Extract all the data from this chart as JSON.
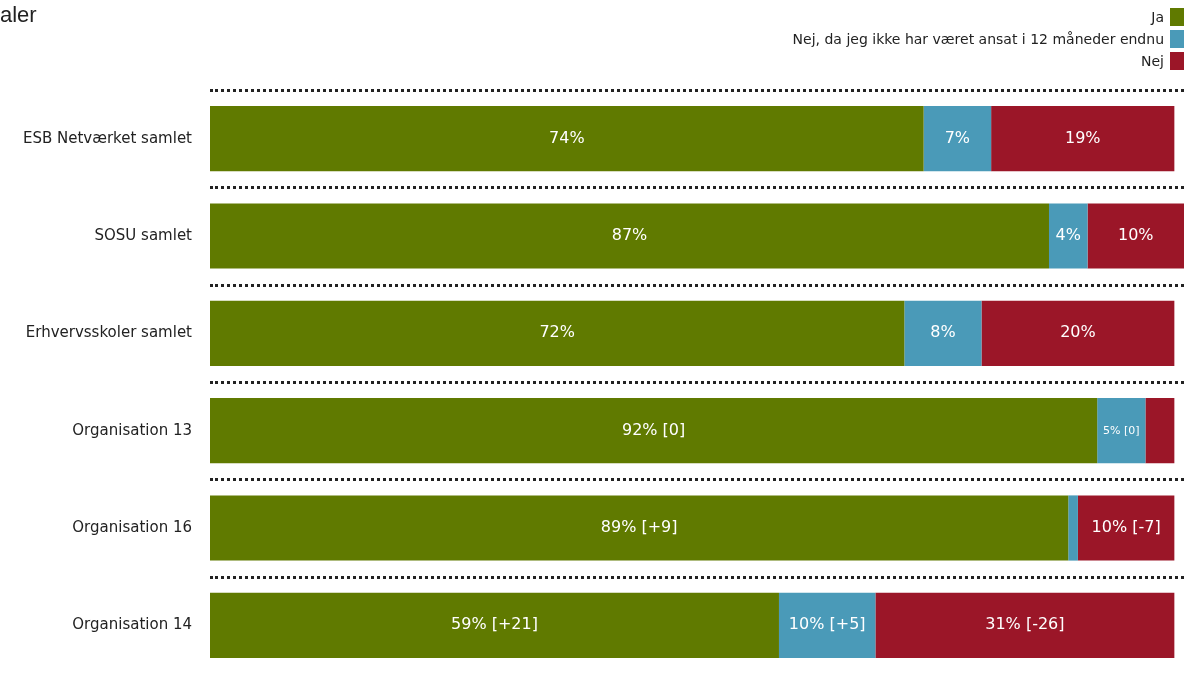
{
  "chart_data": {
    "type": "bar",
    "orientation": "horizontal",
    "stacked": true,
    "title": "aler",
    "legend": "top right",
    "categories": [
      "ESB Netværket samlet",
      "SOSU samlet",
      "Erhvervsskoler samlet",
      "Organisation 13",
      "Organisation 16",
      "Organisation 14"
    ],
    "series": [
      {
        "name": "Ja",
        "color": "#607a00",
        "values": [
          74,
          87,
          72,
          92,
          89,
          59
        ],
        "value_labels": [
          "74%",
          "87%",
          "72%",
          "92% [0]",
          "89% [+9]",
          "59% [+21]"
        ]
      },
      {
        "name": "Nej, da jeg ikke har været ansat i 12 måneder endnu",
        "color": "#4a9ab8",
        "values": [
          7,
          4,
          8,
          5,
          1,
          10
        ],
        "value_labels": [
          "7%",
          "4%",
          "8%",
          "5% [0]",
          null,
          "10% [+5]"
        ]
      },
      {
        "name": "Nej",
        "color": "#9b1628",
        "values": [
          19,
          10,
          20,
          3,
          10,
          31
        ],
        "value_labels": [
          "19%",
          "10%",
          "20%",
          null,
          "10% [-7]",
          "31% [-26]"
        ]
      }
    ]
  }
}
